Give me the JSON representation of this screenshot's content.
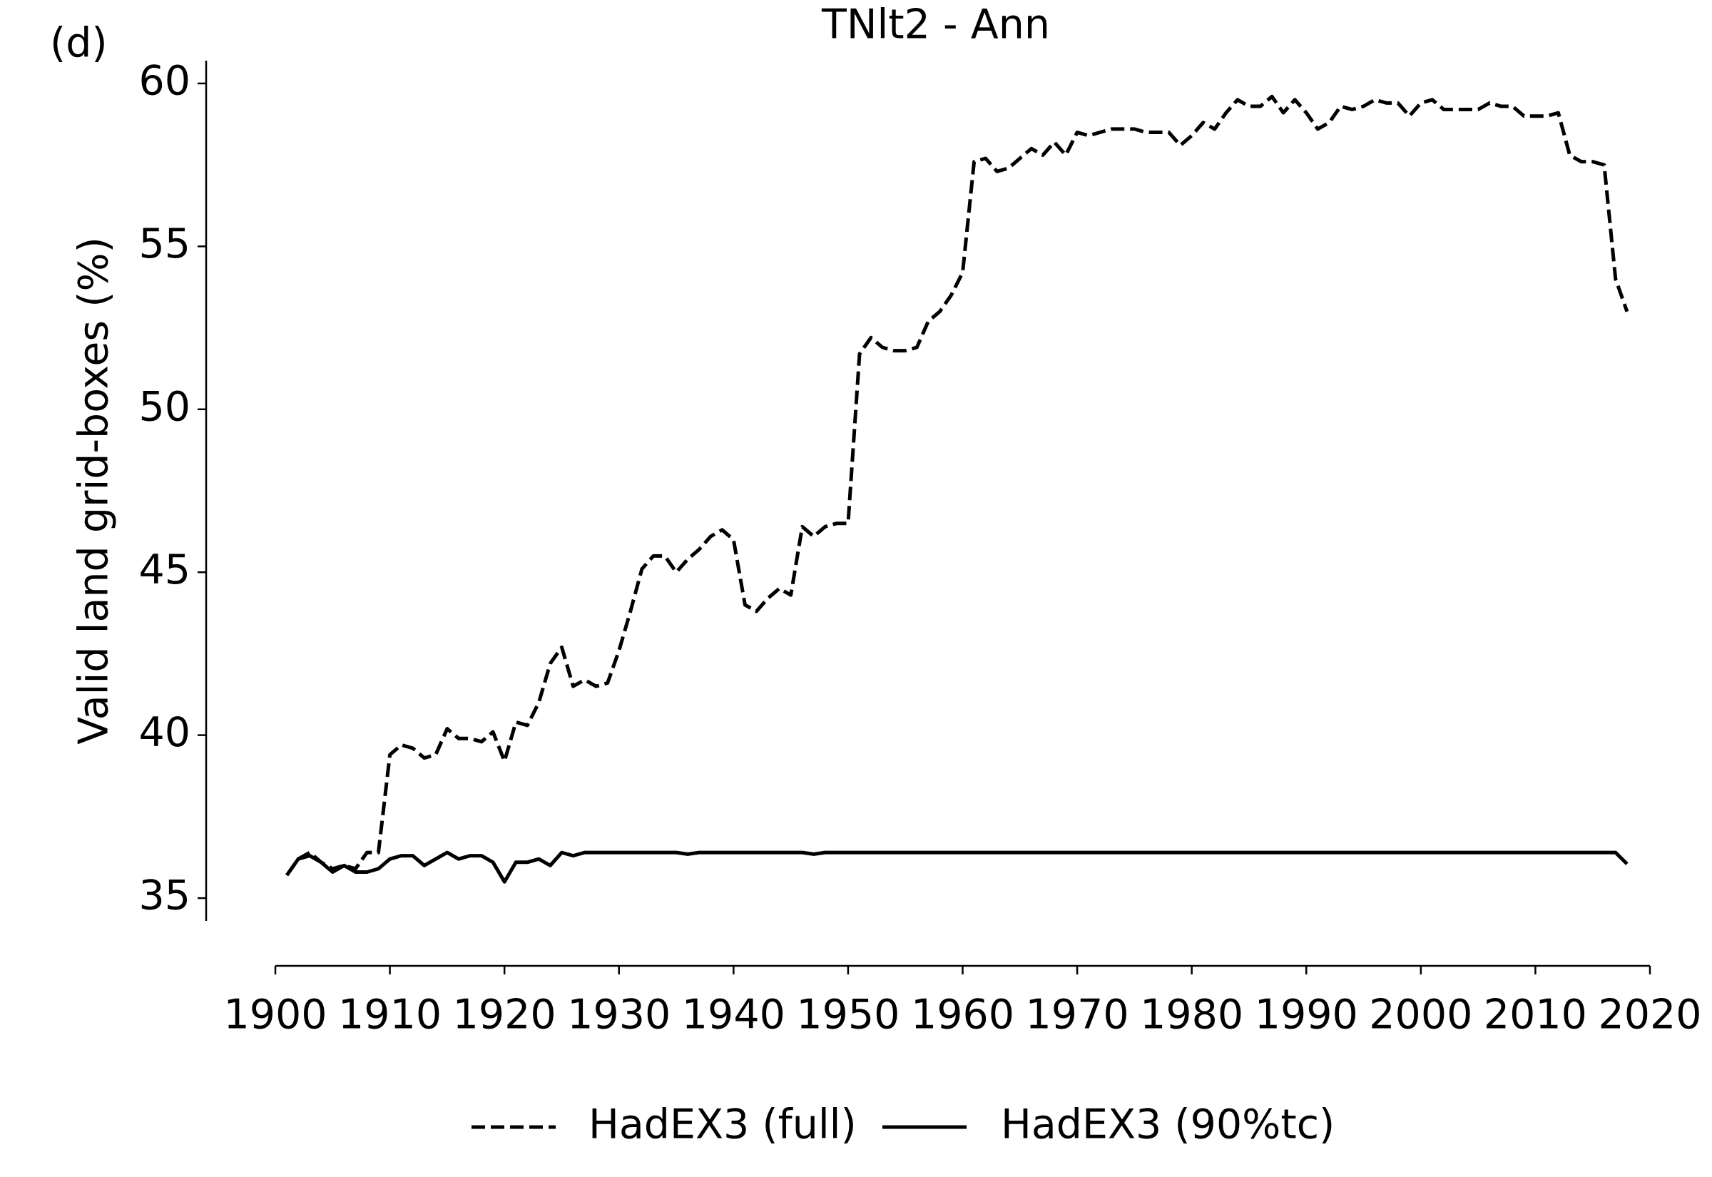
{
  "chart_data": {
    "type": "line",
    "title": "TNlt2 - Ann",
    "panel_label": "(d)",
    "y_label": "Valid land grid-boxes (%)",
    "x": [
      1901,
      1902,
      1903,
      1904,
      1905,
      1906,
      1907,
      1908,
      1909,
      1910,
      1911,
      1912,
      1913,
      1914,
      1915,
      1916,
      1917,
      1918,
      1919,
      1920,
      1921,
      1922,
      1923,
      1924,
      1925,
      1926,
      1927,
      1928,
      1929,
      1930,
      1931,
      1932,
      1933,
      1934,
      1935,
      1936,
      1937,
      1938,
      1939,
      1940,
      1941,
      1942,
      1943,
      1944,
      1945,
      1946,
      1947,
      1948,
      1949,
      1950,
      1951,
      1952,
      1953,
      1954,
      1955,
      1956,
      1957,
      1958,
      1959,
      1960,
      1961,
      1962,
      1963,
      1964,
      1965,
      1966,
      1967,
      1968,
      1969,
      1970,
      1971,
      1972,
      1973,
      1974,
      1975,
      1976,
      1977,
      1978,
      1979,
      1980,
      1981,
      1982,
      1983,
      1984,
      1985,
      1986,
      1987,
      1988,
      1989,
      1990,
      1991,
      1992,
      1993,
      1994,
      1995,
      1996,
      1997,
      1998,
      1999,
      2000,
      2001,
      2002,
      2003,
      2004,
      2005,
      2006,
      2007,
      2008,
      2009,
      2010,
      2011,
      2012,
      2013,
      2014,
      2015,
      2016,
      2017,
      2018
    ],
    "series": [
      {
        "name": "HadEX3 (full)",
        "color": "#000000",
        "dashed": true,
        "values": [
          35.7,
          36.2,
          36.4,
          36.1,
          35.9,
          36.0,
          35.9,
          36.4,
          36.4,
          39.4,
          39.7,
          39.6,
          39.3,
          39.4,
          40.2,
          39.9,
          39.9,
          39.8,
          40.1,
          39.2,
          40.4,
          40.3,
          41.0,
          42.2,
          42.7,
          41.5,
          41.7,
          41.5,
          41.6,
          42.6,
          43.8,
          45.1,
          45.5,
          45.5,
          45.0,
          45.4,
          45.7,
          46.1,
          46.3,
          46.0,
          44.0,
          43.8,
          44.2,
          44.5,
          44.3,
          46.4,
          46.1,
          46.4,
          46.5,
          46.5,
          51.7,
          52.2,
          51.9,
          51.8,
          51.8,
          51.9,
          52.7,
          53.0,
          53.5,
          54.2,
          57.6,
          57.7,
          57.3,
          57.4,
          57.7,
          58.0,
          57.8,
          58.2,
          57.8,
          58.5,
          58.4,
          58.5,
          58.6,
          58.6,
          58.6,
          58.5,
          58.5,
          58.5,
          58.1,
          58.4,
          58.8,
          58.6,
          59.1,
          59.5,
          59.3,
          59.3,
          59.6,
          59.1,
          59.5,
          59.1,
          58.6,
          58.8,
          59.3,
          59.2,
          59.3,
          59.5,
          59.4,
          59.4,
          59.0,
          59.4,
          59.5,
          59.2,
          59.2,
          59.2,
          59.2,
          59.4,
          59.3,
          59.3,
          59.0,
          59.0,
          59.0,
          59.1,
          57.8,
          57.6,
          57.6,
          57.5,
          54.0,
          53.0
        ]
      },
      {
        "name": "HadEX3 (90%tc)",
        "color": "#000000",
        "dashed": false,
        "values": [
          35.7,
          36.2,
          36.3,
          36.1,
          35.8,
          36.0,
          35.8,
          35.8,
          35.9,
          36.2,
          36.3,
          36.3,
          36.0,
          36.2,
          36.4,
          36.2,
          36.3,
          36.3,
          36.1,
          35.5,
          36.1,
          36.1,
          36.2,
          36.0,
          36.4,
          36.3,
          36.4,
          36.4,
          36.4,
          36.4,
          36.4,
          36.4,
          36.4,
          36.4,
          36.4,
          36.35,
          36.4,
          36.4,
          36.4,
          36.4,
          36.4,
          36.4,
          36.4,
          36.4,
          36.4,
          36.4,
          36.35,
          36.4,
          36.4,
          36.4,
          36.4,
          36.4,
          36.4,
          36.4,
          36.4,
          36.4,
          36.4,
          36.4,
          36.4,
          36.4,
          36.4,
          36.4,
          36.4,
          36.4,
          36.4,
          36.4,
          36.4,
          36.4,
          36.4,
          36.4,
          36.4,
          36.4,
          36.4,
          36.4,
          36.4,
          36.4,
          36.4,
          36.4,
          36.4,
          36.4,
          36.4,
          36.4,
          36.4,
          36.4,
          36.4,
          36.4,
          36.4,
          36.4,
          36.4,
          36.4,
          36.4,
          36.4,
          36.4,
          36.4,
          36.4,
          36.4,
          36.4,
          36.4,
          36.4,
          36.4,
          36.4,
          36.4,
          36.4,
          36.4,
          36.4,
          36.4,
          36.4,
          36.4,
          36.4,
          36.4,
          36.4,
          36.4,
          36.4,
          36.4,
          36.4,
          36.4,
          36.4,
          36.05
        ]
      }
    ],
    "xlim": [
      1900,
      2020
    ],
    "xticks": [
      1900,
      1910,
      1920,
      1930,
      1940,
      1950,
      1960,
      1970,
      1980,
      1990,
      2000,
      2010,
      2020
    ],
    "ylim": [
      34.3,
      60.7
    ],
    "yticks": [
      35,
      40,
      45,
      50,
      55,
      60
    ],
    "grid": false,
    "legend": "bottom"
  }
}
